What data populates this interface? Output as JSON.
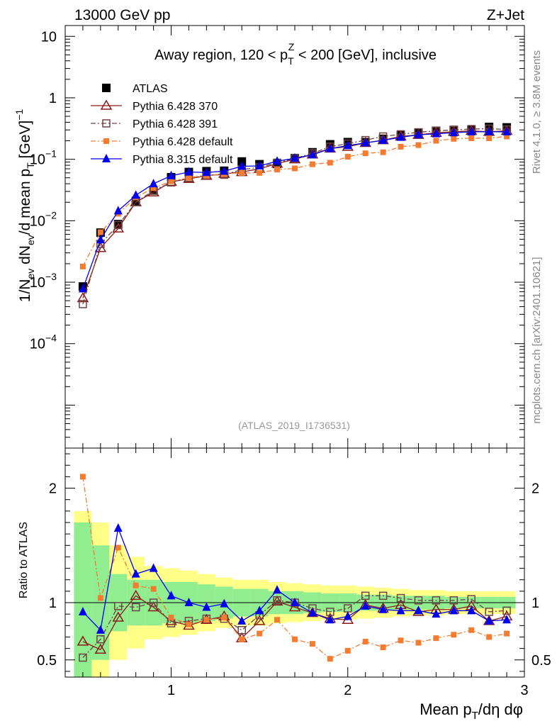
{
  "header": {
    "left": "13000 GeV pp",
    "right": "Z+Jet"
  },
  "side_labels": {
    "rivet": "Rivet 4.1.0, ≥ 3.8M events",
    "mcplots": "mcplots.cern.ch [arXiv:2401.10621]"
  },
  "chart_data": [
    {
      "type": "line",
      "panel": "main",
      "title": "Away region, 120 < p_T^Z < 200 [GeV], inclusive",
      "watermark": "(ATLAS_2019_I1736531)",
      "xlabel": "Mean p_T/dη dφ",
      "ylabel": "1/N_ev dN_ev/d mean p_T [GeV]^-1",
      "yscale": "log",
      "xlim": [
        0.4,
        3.0
      ],
      "ylim": [
        2e-06,
        15
      ],
      "x_ticks": [
        "1",
        "2",
        "3"
      ],
      "y_ticks": [
        "10^-4",
        "10^-3",
        "10^-2",
        "10^-1",
        "1",
        "10"
      ],
      "legend_position": "top-left",
      "x": [
        0.5,
        0.6,
        0.7,
        0.8,
        0.9,
        1.0,
        1.1,
        1.2,
        1.3,
        1.4,
        1.5,
        1.6,
        1.7,
        1.8,
        1.9,
        2.0,
        2.1,
        2.2,
        2.3,
        2.4,
        2.5,
        2.6,
        2.7,
        2.8,
        2.9
      ],
      "series": [
        {
          "name": "ATLAS",
          "color": "#000000",
          "marker": "filled-square",
          "line": "none",
          "values": [
            0.00085,
            0.0064,
            0.0088,
            0.021,
            0.031,
            0.051,
            0.062,
            0.064,
            0.065,
            0.092,
            0.083,
            0.084,
            0.104,
            0.13,
            0.175,
            0.19,
            0.19,
            0.215,
            0.245,
            0.27,
            0.29,
            0.3,
            0.3,
            0.335,
            0.33
          ]
        },
        {
          "name": "Pythia 6.428 370",
          "color": "#8b1a1a",
          "marker": "open-triangle",
          "line": "solid",
          "values": [
            0.00055,
            0.0036,
            0.0075,
            0.02,
            0.029,
            0.043,
            0.048,
            0.054,
            0.058,
            0.062,
            0.07,
            0.085,
            0.1,
            0.12,
            0.15,
            0.16,
            0.185,
            0.205,
            0.235,
            0.25,
            0.27,
            0.28,
            0.29,
            0.28,
            0.29
          ]
        },
        {
          "name": "Pythia 6.428 391",
          "color": "#6e4444",
          "marker": "open-square",
          "line": "dashdot",
          "values": [
            0.00044,
            0.0042,
            0.0085,
            0.02,
            0.031,
            0.042,
            0.05,
            0.055,
            0.056,
            0.068,
            0.074,
            0.088,
            0.103,
            0.125,
            0.16,
            0.18,
            0.205,
            0.235,
            0.255,
            0.275,
            0.29,
            0.3,
            0.31,
            0.315,
            0.305
          ]
        },
        {
          "name": "Pythia 6.428 default",
          "color": "#f47c30",
          "marker": "filled-square-small",
          "line": "dashdot",
          "values": [
            0.0018,
            0.0065,
            0.013,
            0.024,
            0.034,
            0.044,
            0.05,
            0.054,
            0.058,
            0.06,
            0.06,
            0.068,
            0.071,
            0.083,
            0.088,
            0.11,
            0.125,
            0.13,
            0.16,
            0.17,
            0.2,
            0.215,
            0.22,
            0.22,
            0.235
          ]
        },
        {
          "name": "Pythia 8.315 default",
          "color": "#0000ee",
          "marker": "filled-triangle",
          "line": "solid",
          "values": [
            0.00078,
            0.0049,
            0.0145,
            0.026,
            0.04,
            0.054,
            0.062,
            0.061,
            0.064,
            0.077,
            0.078,
            0.093,
            0.104,
            0.118,
            0.149,
            0.167,
            0.185,
            0.203,
            0.228,
            0.25,
            0.26,
            0.27,
            0.28,
            0.28,
            0.28
          ]
        }
      ]
    },
    {
      "type": "line",
      "panel": "ratio",
      "ylabel": "Ratio to ATLAS",
      "xlim": [
        0.4,
        3.0
      ],
      "ylim": [
        0.35,
        2.35
      ],
      "y_ticks": [
        "0.5",
        "1",
        "2"
      ],
      "reference_line": 1,
      "x": [
        0.5,
        0.6,
        0.7,
        0.8,
        0.9,
        1.0,
        1.1,
        1.2,
        1.3,
        1.4,
        1.5,
        1.6,
        1.7,
        1.8,
        1.9,
        2.0,
        2.1,
        2.2,
        2.3,
        2.4,
        2.5,
        2.6,
        2.7,
        2.8,
        2.9
      ],
      "bin_edges": [
        0.45,
        0.55,
        0.65,
        0.75,
        0.85,
        0.95,
        1.05,
        1.15,
        1.25,
        1.35,
        1.45,
        1.55,
        1.65,
        1.75,
        1.85,
        1.95,
        2.05,
        2.15,
        2.25,
        2.35,
        2.45,
        2.55,
        2.65,
        2.75,
        2.85,
        2.95
      ],
      "bands": {
        "stat_half_width": [
          0.7,
          0.5,
          0.25,
          0.2,
          0.2,
          0.18,
          0.18,
          0.16,
          0.14,
          0.12,
          0.12,
          0.1,
          0.1,
          0.09,
          0.08,
          0.08,
          0.07,
          0.07,
          0.06,
          0.06,
          0.06,
          0.05,
          0.05,
          0.05,
          0.05
        ],
        "syst_half_width": [
          0.8,
          0.7,
          0.5,
          0.4,
          0.32,
          0.3,
          0.28,
          0.25,
          0.22,
          0.2,
          0.2,
          0.18,
          0.17,
          0.16,
          0.15,
          0.15,
          0.14,
          0.13,
          0.12,
          0.11,
          0.11,
          0.1,
          0.1,
          0.1,
          0.1
        ],
        "stat_color": "#90ee90",
        "syst_color": "#ffff88"
      },
      "series": [
        {
          "name": "Pythia 6.428 370",
          "color": "#8b1a1a",
          "values": [
            0.66,
            0.59,
            0.87,
            1.06,
            0.96,
            0.84,
            0.8,
            0.85,
            0.88,
            0.69,
            0.84,
            1.01,
            0.96,
            0.91,
            0.86,
            0.85,
            0.98,
            0.95,
            0.98,
            0.92,
            0.94,
            0.94,
            0.97,
            0.84,
            0.88
          ]
        },
        {
          "name": "Pythia 6.428 391",
          "color": "#6e4444",
          "values": [
            0.52,
            0.68,
            0.97,
            0.96,
            1.0,
            0.82,
            0.84,
            0.86,
            0.86,
            0.76,
            0.89,
            1.02,
            1.0,
            0.95,
            0.92,
            0.95,
            1.06,
            1.06,
            1.04,
            1.02,
            1.02,
            1.02,
            1.03,
            0.92,
            0.93
          ]
        },
        {
          "name": "Pythia 6.428 default",
          "color": "#f47c30",
          "values": [
            2.1,
            1.04,
            1.48,
            1.15,
            1.12,
            0.87,
            0.81,
            0.85,
            0.87,
            0.68,
            0.73,
            0.85,
            0.68,
            0.64,
            0.51,
            0.58,
            0.66,
            0.61,
            0.67,
            0.65,
            0.69,
            0.72,
            0.76,
            0.7,
            0.73
          ]
        },
        {
          "name": "Pythia 8.315 default",
          "color": "#0000ee",
          "values": [
            0.92,
            0.76,
            1.65,
            1.25,
            1.3,
            1.06,
            1.0,
            0.96,
            0.99,
            0.84,
            0.93,
            1.11,
            1.0,
            0.91,
            0.85,
            0.88,
            0.97,
            0.94,
            0.93,
            0.93,
            0.9,
            0.93,
            0.93,
            0.84,
            0.85
          ]
        }
      ]
    }
  ]
}
